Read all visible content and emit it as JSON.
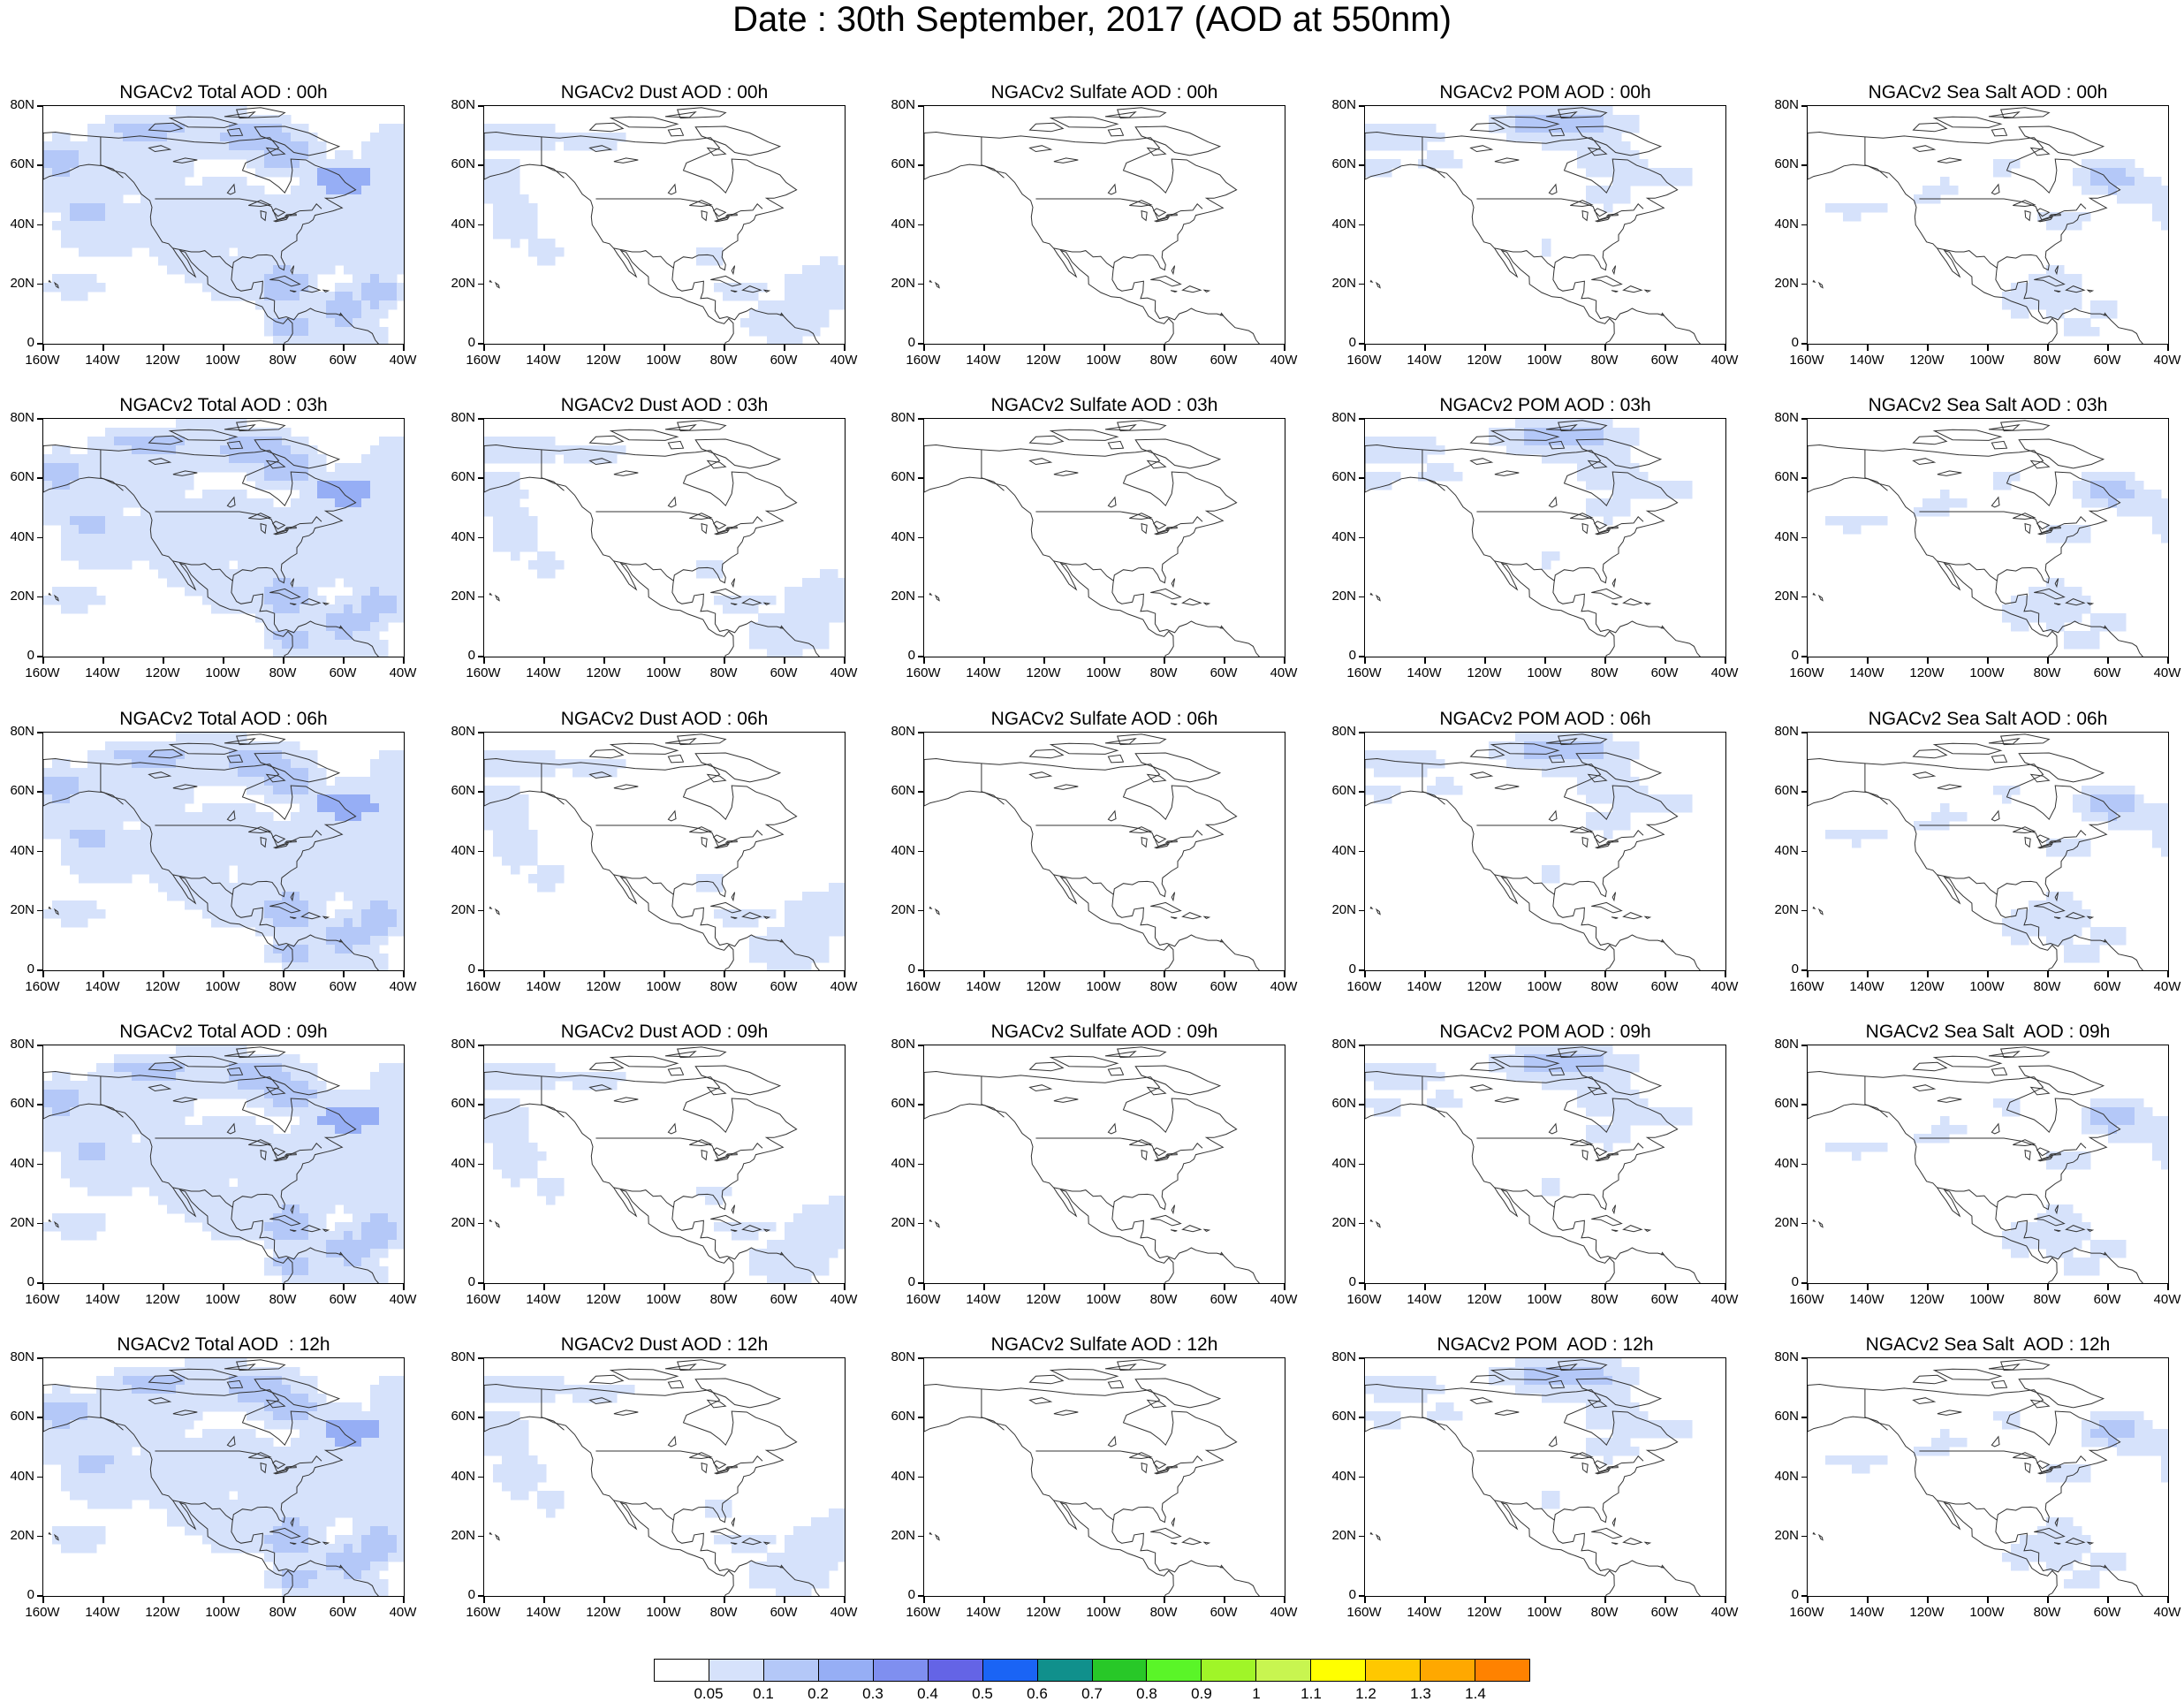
{
  "page": {
    "title": "Date : 30th September, 2017 (AOD at 550nm)"
  },
  "map_axes": {
    "lat_labels": [
      "80N",
      "60N",
      "40N",
      "20N",
      "0"
    ],
    "lon_labels": [
      "160W",
      "140W",
      "120W",
      "100W",
      "80W",
      "60W",
      "40W"
    ],
    "lat_range": [
      0,
      80
    ],
    "lon_range": [
      -160,
      -40
    ]
  },
  "panels": [
    [
      {
        "title": "NGACv2 Total AOD : 00h",
        "species": "total"
      },
      {
        "title": "NGACv2 Dust AOD : 00h",
        "species": "dust"
      },
      {
        "title": "NGACv2 Sulfate AOD : 00h",
        "species": "sulfate"
      },
      {
        "title": "NGACv2 POM AOD : 00h",
        "species": "pom"
      },
      {
        "title": "NGACv2 Sea Salt AOD : 00h",
        "species": "seasalt"
      }
    ],
    [
      {
        "title": "NGACv2 Total AOD : 03h",
        "species": "total"
      },
      {
        "title": "NGACv2 Dust AOD : 03h",
        "species": "dust"
      },
      {
        "title": "NGACv2 Sulfate AOD : 03h",
        "species": "sulfate"
      },
      {
        "title": "NGACv2 POM AOD : 03h",
        "species": "pom"
      },
      {
        "title": "NGACv2 Sea Salt AOD : 03h",
        "species": "seasalt"
      }
    ],
    [
      {
        "title": "NGACv2 Total AOD : 06h",
        "species": "total"
      },
      {
        "title": "NGACv2 Dust AOD : 06h",
        "species": "dust"
      },
      {
        "title": "NGACv2 Sulfate AOD : 06h",
        "species": "sulfate"
      },
      {
        "title": "NGACv2 POM AOD : 06h",
        "species": "pom"
      },
      {
        "title": "NGACv2 Sea Salt AOD : 06h",
        "species": "seasalt"
      }
    ],
    [
      {
        "title": "NGACv2 Total AOD : 09h",
        "species": "total"
      },
      {
        "title": "NGACv2 Dust AOD : 09h",
        "species": "dust"
      },
      {
        "title": "NGACv2 Sulfate AOD : 09h",
        "species": "sulfate"
      },
      {
        "title": "NGACv2 POM AOD : 09h",
        "species": "pom"
      },
      {
        "title": "NGACv2 Sea Salt  AOD : 09h",
        "species": "seasalt"
      }
    ],
    [
      {
        "title": "NGACv2 Total AOD  : 12h",
        "species": "total"
      },
      {
        "title": "NGACv2 Dust AOD : 12h",
        "species": "dust"
      },
      {
        "title": "NGACv2 Sulfate AOD : 12h",
        "species": "sulfate"
      },
      {
        "title": "NGACv2 POM  AOD : 12h",
        "species": "pom"
      },
      {
        "title": "NGACv2 Sea Salt  AOD : 12h",
        "species": "seasalt"
      }
    ]
  ],
  "colorbar": {
    "colors": [
      "#ffffff",
      "#d6e2fb",
      "#b4c8f8",
      "#96aef5",
      "#7f8ff0",
      "#6464e6",
      "#1a64f5",
      "#10908c",
      "#28c828",
      "#5af528",
      "#a0f528",
      "#c8f550",
      "#ffff00",
      "#ffc800",
      "#ffa800",
      "#ff8200",
      "#ff5000",
      "#ff2000"
    ],
    "labels": [
      "0.05",
      "0.1",
      "0.2",
      "0.3",
      "0.4",
      "0.5",
      "0.6",
      "0.7",
      "0.8",
      "0.9",
      "1",
      "1.1",
      "1.2",
      "1.3",
      "1.4"
    ]
  }
}
